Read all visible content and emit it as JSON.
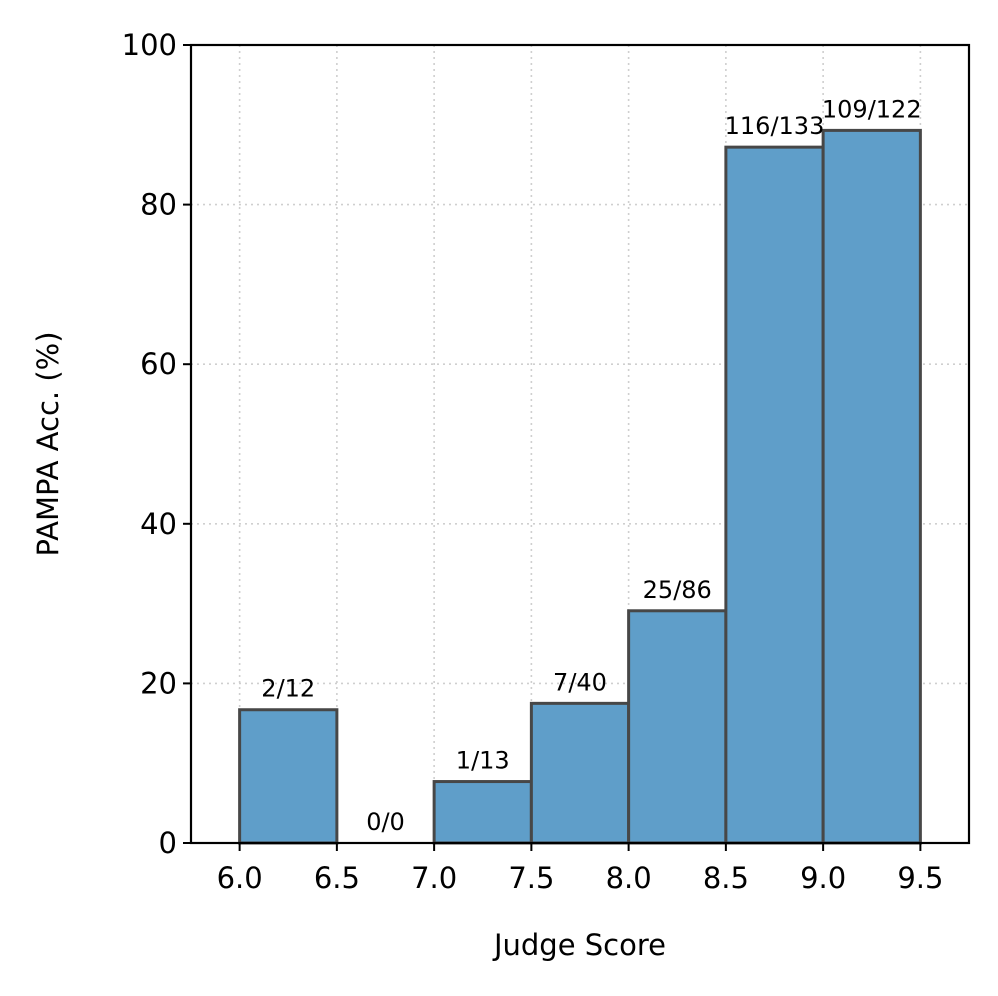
{
  "chart_data": {
    "type": "bar",
    "xlabel": "Judge Score",
    "ylabel": "PAMPA Acc. (%)",
    "xlim": [
      5.75,
      9.75
    ],
    "ylim": [
      0,
      100
    ],
    "xticks": [
      "6.0",
      "6.5",
      "7.0",
      "7.5",
      "8.0",
      "8.5",
      "9.0",
      "9.5"
    ],
    "yticks": [
      "0",
      "20",
      "40",
      "60",
      "80",
      "100"
    ],
    "grid": true,
    "bins": [
      {
        "start": 6.0,
        "end": 6.5,
        "value": 16.7,
        "label": "2/12"
      },
      {
        "start": 6.5,
        "end": 7.0,
        "value": 0,
        "label": "0/0"
      },
      {
        "start": 7.0,
        "end": 7.5,
        "value": 7.7,
        "label": "1/13"
      },
      {
        "start": 7.5,
        "end": 8.0,
        "value": 17.5,
        "label": "7/40"
      },
      {
        "start": 8.0,
        "end": 8.5,
        "value": 29.1,
        "label": "25/86"
      },
      {
        "start": 8.5,
        "end": 9.0,
        "value": 87.2,
        "label": "116/133"
      },
      {
        "start": 9.0,
        "end": 9.5,
        "value": 89.3,
        "label": "109/122"
      }
    ],
    "colors": {
      "bar": "#5f9ec9",
      "edge": "#474747",
      "grid": "#cfcfcf"
    }
  }
}
